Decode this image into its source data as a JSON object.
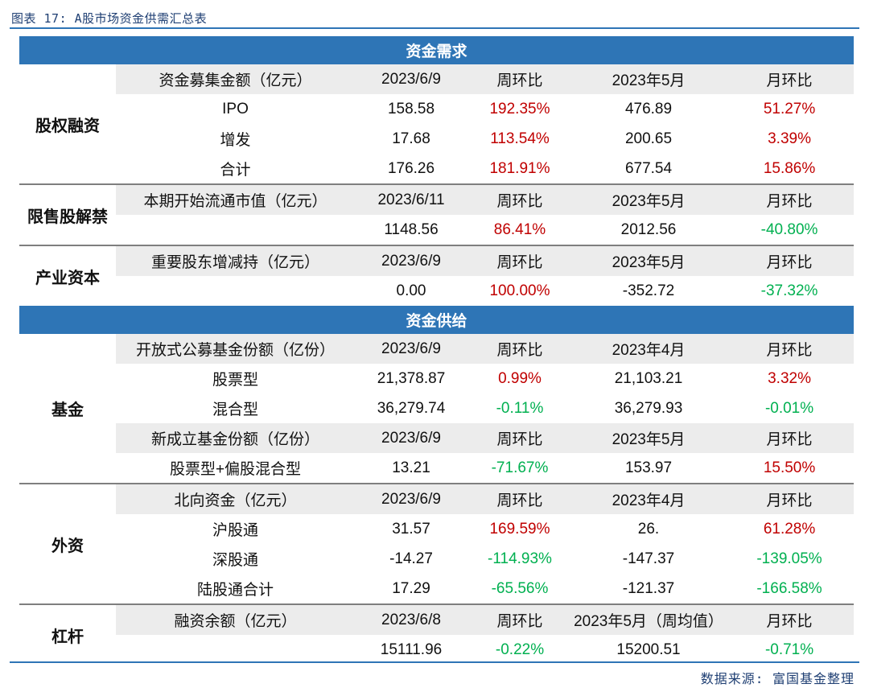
{
  "title": "图表 17: A股市场资金供需汇总表",
  "source": "数据来源: 富国基金整理",
  "demand_band": "资金需求",
  "supply_band": "资金供给",
  "groups": {
    "equity": {
      "category": "股权融资",
      "header": [
        "资金募集金额（亿元）",
        "2023/6/9",
        "周环比",
        "2023年5月",
        "月环比"
      ],
      "rows": [
        {
          "label": "IPO",
          "value": "158.58",
          "wow": "192.35%",
          "month": "476.89",
          "mom": "51.27%"
        },
        {
          "label": "增发",
          "value": "17.68",
          "wow": "113.54%",
          "month": "200.65",
          "mom": "3.39%"
        },
        {
          "label": "合计",
          "value": "176.26",
          "wow": "181.91%",
          "month": "677.54",
          "mom": "15.86%"
        }
      ]
    },
    "lockup": {
      "category": "限售股解禁",
      "header": [
        "本期开始流通市值（亿元）",
        "2023/6/11",
        "周环比",
        "2023年5月",
        "月环比"
      ],
      "rows": [
        {
          "label": "",
          "value": "1148.56",
          "wow": "86.41%",
          "month": "2012.56",
          "mom": "-40.80%"
        }
      ]
    },
    "industry": {
      "category": "产业资本",
      "header": [
        "重要股东增减持（亿元）",
        "2023/6/9",
        "周环比",
        "2023年5月",
        "月环比"
      ],
      "rows": [
        {
          "label": "",
          "value": "0.00",
          "wow": "100.00%",
          "month": "-352.72",
          "mom": "-37.32%"
        }
      ]
    },
    "fund": {
      "category": "基金",
      "header1": [
        "开放式公募基金份额（亿份）",
        "2023/6/9",
        "周环比",
        "2023年4月",
        "月环比"
      ],
      "rows1": [
        {
          "label": "股票型",
          "value": "21,378.87",
          "wow": "0.99%",
          "month": "21,103.21",
          "mom": "3.32%"
        },
        {
          "label": "混合型",
          "value": "36,279.74",
          "wow": "-0.11%",
          "month": "36,279.93",
          "mom": "-0.01%"
        }
      ],
      "header2": [
        "新成立基金份额（亿份）",
        "2023/6/9",
        "周环比",
        "2023年5月",
        "月环比"
      ],
      "rows2": [
        {
          "label": "股票型+偏股混合型",
          "value": "13.21",
          "wow": "-71.67%",
          "month": "153.97",
          "mom": "15.50%"
        }
      ]
    },
    "foreign": {
      "category": "外资",
      "header": [
        "北向资金（亿元）",
        "2023/6/9",
        "周环比",
        "2023年4月",
        "月环比"
      ],
      "rows": [
        {
          "label": "沪股通",
          "value": "31.57",
          "wow": "169.59%",
          "month": "26.",
          "mom": "61.28%"
        },
        {
          "label": "深股通",
          "value": "-14.27",
          "wow": "-114.93%",
          "month": "-147.37",
          "mom": "-139.05%"
        },
        {
          "label": "陆股通合计",
          "value": "17.29",
          "wow": "-65.56%",
          "month": "-121.37",
          "mom": "-166.58%"
        }
      ]
    },
    "leverage": {
      "category": "杠杆",
      "header": [
        "融资余额（亿元）",
        "2023/6/8",
        "周环比",
        "2023年5月（周均值）",
        "月环比"
      ],
      "rows": [
        {
          "label": "",
          "value": "15111.96",
          "wow": "-0.22%",
          "month": "15200.51",
          "mom": "-0.71%"
        }
      ]
    }
  },
  "colors": {
    "band": "#2e75b6",
    "header": "#ececec",
    "positive": "#c00000",
    "negative": "#00b050"
  }
}
